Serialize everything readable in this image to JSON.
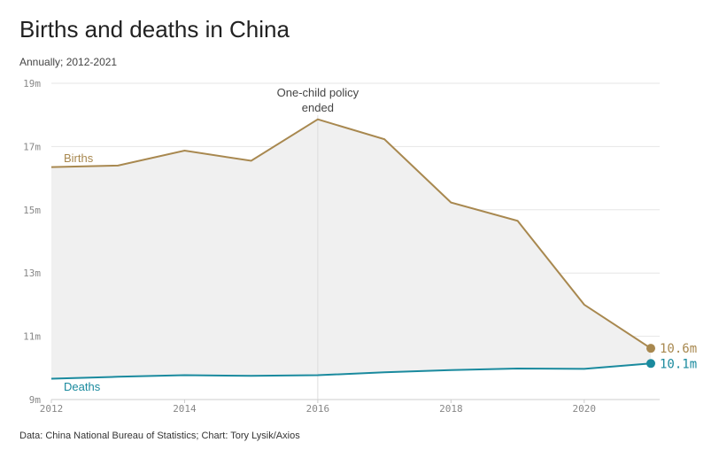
{
  "chart_data": {
    "type": "line",
    "title": "Births and deaths in China",
    "subtitle": "Annually; 2012-2021",
    "source": "Data: China National Bureau of Statistics; Chart: Tory Lysik/Axios",
    "x": [
      2012,
      2013,
      2014,
      2015,
      2016,
      2017,
      2018,
      2019,
      2020,
      2021
    ],
    "xticks": [
      "2012",
      "2014",
      "2016",
      "2018",
      "2020"
    ],
    "yticks": [
      "9m",
      "11m",
      "13m",
      "15m",
      "17m",
      "19m"
    ],
    "ylim": [
      9,
      19
    ],
    "xlim": [
      2012,
      2021
    ],
    "grid": true,
    "series": [
      {
        "name": "Births",
        "color": "#a8884f",
        "values": [
          16.35,
          16.4,
          16.87,
          16.55,
          17.86,
          17.23,
          15.23,
          14.65,
          12.0,
          10.62
        ],
        "end_label": "10.6m"
      },
      {
        "name": "Deaths",
        "color": "#1a8a9e",
        "values": [
          9.66,
          9.72,
          9.77,
          9.75,
          9.77,
          9.86,
          9.93,
          9.98,
          9.97,
          10.14
        ],
        "end_label": "10.1m"
      }
    ],
    "annotation": {
      "x": 2016,
      "lines": [
        "One-child policy",
        "ended"
      ]
    },
    "fill_color": "#f0f0f0"
  }
}
